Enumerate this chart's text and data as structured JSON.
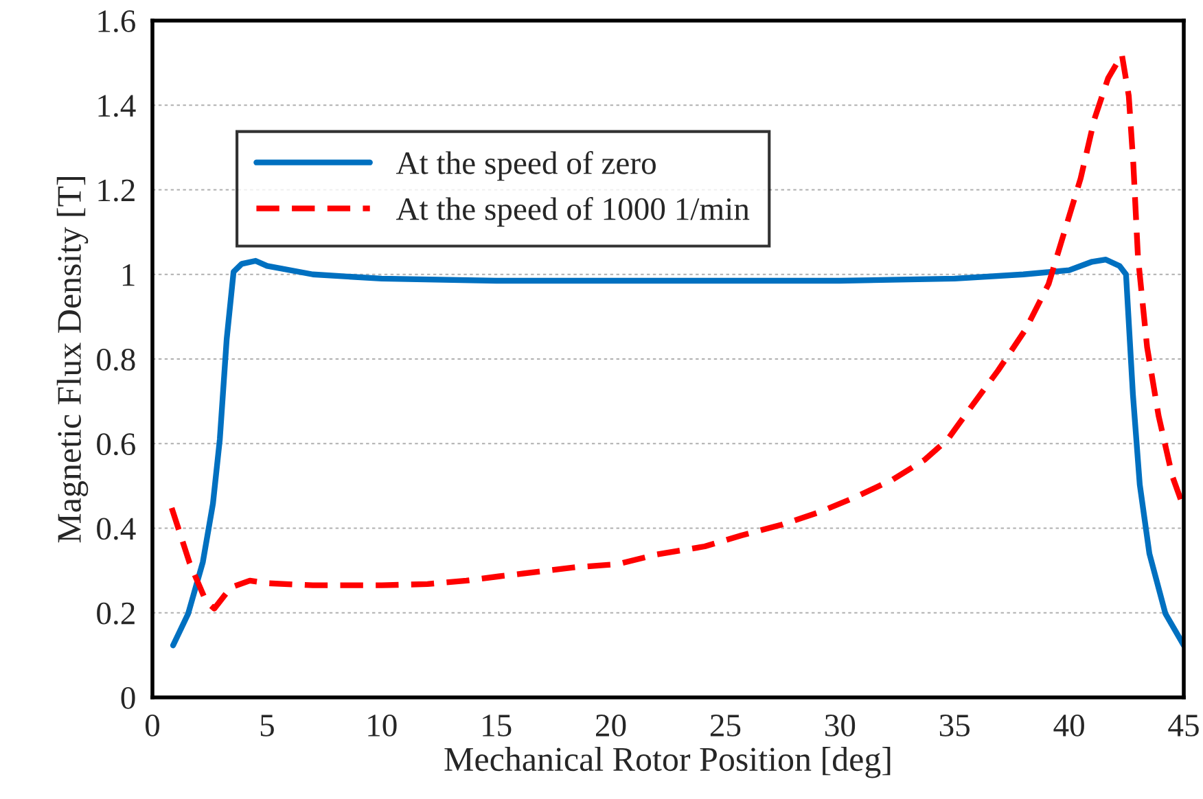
{
  "chart_data": {
    "type": "line",
    "xlabel": "Mechanical Rotor Position [deg]",
    "ylabel": "Magnetic Flux Density [T]",
    "xlim": [
      0,
      45
    ],
    "xticks": [
      0,
      5,
      10,
      15,
      20,
      25,
      30,
      35,
      40,
      45
    ],
    "ylim": [
      0,
      1.6
    ],
    "yticks": [
      0,
      0.2,
      0.4,
      0.6,
      0.8,
      1,
      1.2,
      1.4,
      1.6
    ],
    "grid": "y",
    "legend": "top",
    "marker": "none",
    "series": [
      {
        "name": "At the speed of zero",
        "color": "#0070c0",
        "line_style": "solid",
        "x": [
          0.9,
          1.56,
          2.2,
          2.64,
          2.94,
          3.24,
          3.54,
          3.9,
          4.5,
          5,
          7,
          10,
          15,
          20,
          25,
          30,
          35,
          38,
          40,
          41,
          41.6,
          42.2,
          42.48,
          42.78,
          43.08,
          43.5,
          44.2,
          45
        ],
        "values": [
          0.123,
          0.198,
          0.32,
          0.458,
          0.61,
          0.847,
          1.006,
          1.025,
          1.032,
          1.02,
          1.0,
          0.99,
          0.985,
          0.985,
          0.985,
          0.985,
          0.99,
          1.0,
          1.01,
          1.03,
          1.035,
          1.02,
          1.0,
          0.717,
          0.503,
          0.34,
          0.198,
          0.123
        ]
      },
      {
        "name": "At the speed of 1000 1/min",
        "color": "#ff0000",
        "line_style": "dashed",
        "x": [
          0.84,
          1.62,
          2.34,
          2.7,
          3.42,
          4.25,
          5,
          7,
          10,
          12,
          13.7,
          15.1,
          18.5,
          20.3,
          22,
          24.1,
          25.7,
          27.5,
          29.1,
          30.7,
          32.3,
          33.7,
          34.7,
          35.7,
          36.9,
          38.1,
          39.1,
          39.9,
          40.5,
          41.1,
          41.7,
          42.3,
          42.6,
          42.8,
          43.0,
          43.4,
          43.9,
          44.5,
          45
        ],
        "values": [
          0.448,
          0.318,
          0.227,
          0.21,
          0.26,
          0.276,
          0.27,
          0.265,
          0.265,
          0.268,
          0.276,
          0.286,
          0.308,
          0.315,
          0.338,
          0.357,
          0.383,
          0.409,
          0.438,
          0.474,
          0.515,
          0.562,
          0.61,
          0.685,
          0.773,
          0.87,
          0.977,
          1.12,
          1.227,
          1.367,
          1.464,
          1.519,
          1.422,
          1.26,
          1.042,
          0.828,
          0.666,
          0.523,
          0.448
        ]
      }
    ]
  }
}
